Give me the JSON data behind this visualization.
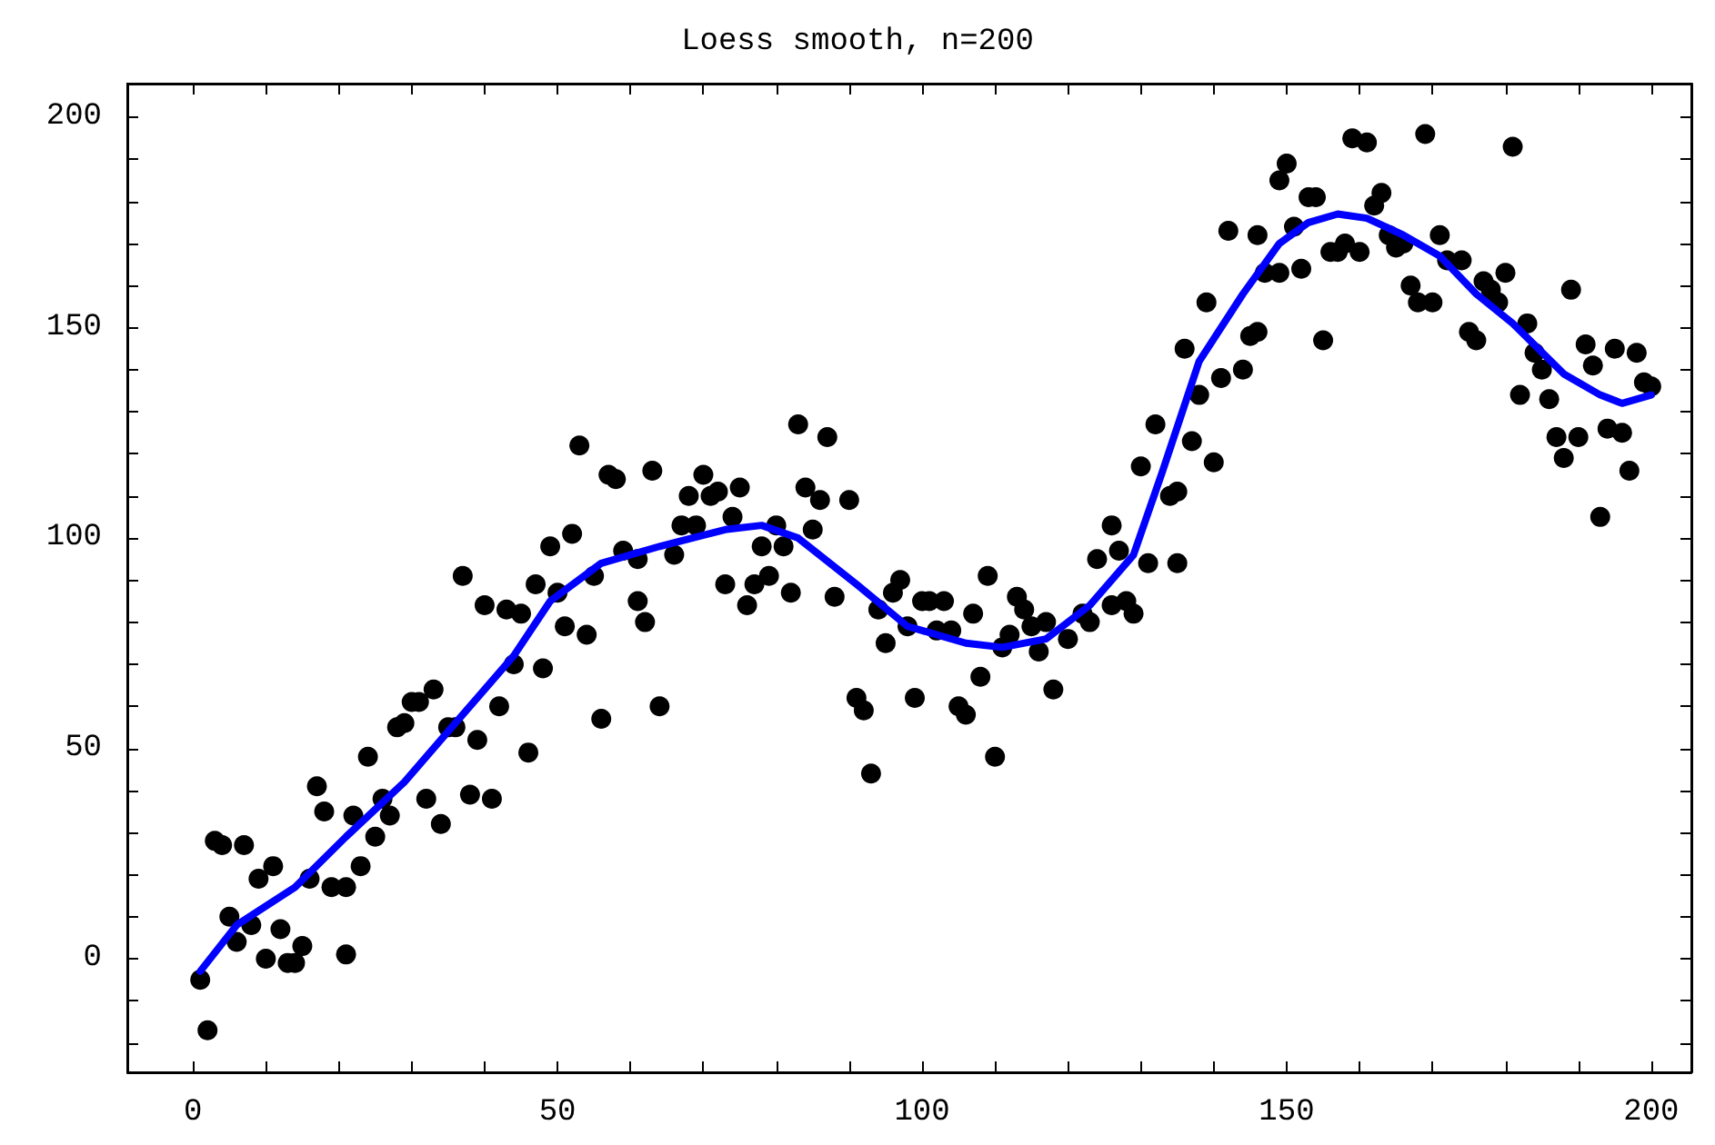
{
  "chart_data": {
    "type": "scatter",
    "title": "Loess smooth, n=200",
    "marker": "circle",
    "xlim": [
      -9,
      205.5
    ],
    "ylim": [
      -27,
      208
    ],
    "xticks": [
      0,
      {
        "value": 10,
        "label": null
      },
      {
        "value": 20,
        "label": null
      },
      {
        "value": 30,
        "label": null
      },
      {
        "value": 40,
        "label": null
      },
      50,
      {
        "value": 60,
        "label": null
      },
      {
        "value": 70,
        "label": null
      },
      {
        "value": 80,
        "label": null
      },
      {
        "value": 90,
        "label": null
      },
      100,
      {
        "value": 110,
        "label": null
      },
      {
        "value": 120,
        "label": null
      },
      {
        "value": 130,
        "label": null
      },
      {
        "value": 140,
        "label": null
      },
      150,
      {
        "value": 160,
        "label": null
      },
      {
        "value": 170,
        "label": null
      },
      {
        "value": 180,
        "label": null
      },
      {
        "value": 190,
        "label": null
      },
      200
    ],
    "yticks": [
      {
        "value": -20,
        "label": null
      },
      {
        "value": -10,
        "label": null
      },
      0,
      {
        "value": 10,
        "label": null
      },
      {
        "value": 20,
        "label": null
      },
      {
        "value": 30,
        "label": null
      },
      {
        "value": 40,
        "label": null
      },
      50,
      {
        "value": 60,
        "label": null
      },
      {
        "value": 70,
        "label": null
      },
      {
        "value": 80,
        "label": null
      },
      {
        "value": 90,
        "label": null
      },
      100,
      {
        "value": 110,
        "label": null
      },
      {
        "value": 120,
        "label": null
      },
      {
        "value": 130,
        "label": null
      },
      {
        "value": 140,
        "label": null
      },
      150,
      {
        "value": 160,
        "label": null
      },
      {
        "value": 170,
        "label": null
      },
      {
        "value": 180,
        "label": null
      },
      {
        "value": 190,
        "label": null
      },
      200
    ],
    "series": [
      {
        "color": "#000000",
        "x": [
          1,
          2,
          3,
          4,
          5,
          6,
          7,
          8,
          9,
          10,
          11,
          12,
          13,
          14,
          15,
          16,
          17,
          18,
          19,
          21,
          21,
          22,
          23,
          24,
          25,
          26,
          27,
          28,
          29,
          30,
          31,
          32,
          33,
          34,
          35,
          36,
          37,
          38,
          39,
          40,
          41,
          42,
          43,
          44,
          45,
          46,
          47,
          48,
          49,
          50,
          51,
          52,
          53,
          54,
          55,
          56,
          57,
          58,
          59,
          61,
          61,
          62,
          63,
          64,
          66,
          67,
          68,
          69,
          70,
          71,
          72,
          73,
          74,
          75,
          76,
          77,
          78,
          79,
          80,
          81,
          82,
          83,
          84,
          85,
          86,
          87,
          88,
          90,
          91,
          92,
          93,
          94,
          95,
          96,
          97,
          98,
          99,
          100,
          101,
          102,
          103,
          104,
          105,
          106,
          107,
          108,
          109,
          110,
          111,
          112,
          113,
          114,
          115,
          116,
          117,
          118,
          120,
          122,
          123,
          124,
          126,
          126,
          127,
          128,
          129,
          130,
          131,
          132,
          134,
          135,
          135,
          136,
          137,
          138,
          139,
          140,
          141,
          142,
          144,
          145,
          146,
          146,
          147,
          149,
          149,
          150,
          151,
          152,
          153,
          154,
          155,
          156,
          157,
          158,
          159,
          160,
          161,
          162,
          163,
          164,
          165,
          166,
          167,
          168,
          169,
          170,
          171,
          172,
          174,
          175,
          176,
          177,
          178,
          179,
          180,
          181,
          182,
          183,
          184,
          185,
          186,
          187,
          188,
          189,
          190,
          191,
          192,
          193,
          194,
          195,
          196,
          197,
          198,
          199,
          200
        ],
        "values": [
          -5,
          -17,
          28,
          27,
          10,
          4,
          27,
          8,
          19,
          0,
          22,
          7,
          -1,
          -1,
          3,
          19,
          41,
          35,
          17,
          17,
          1,
          34,
          22,
          48,
          29,
          38,
          34,
          55,
          56,
          61,
          61,
          38,
          64,
          32,
          55,
          55,
          91,
          39,
          52,
          84,
          38,
          60,
          83,
          70,
          82,
          49,
          89,
          69,
          98,
          87,
          79,
          101,
          122,
          77,
          91,
          57,
          115,
          114,
          97,
          95,
          85,
          80,
          116,
          60,
          96,
          103,
          110,
          103,
          115,
          110,
          111,
          89,
          105,
          112,
          84,
          89,
          98,
          91,
          103,
          98,
          87,
          127,
          112,
          102,
          109,
          124,
          86,
          109,
          62,
          59,
          44,
          83,
          75,
          87,
          90,
          79,
          62,
          85,
          85,
          78,
          85,
          78,
          60,
          58,
          82,
          67,
          91,
          48,
          74,
          77,
          86,
          83,
          79,
          73,
          80,
          64,
          76,
          82,
          80,
          95,
          84,
          103,
          97,
          85,
          82,
          117,
          94,
          127,
          110,
          94,
          111,
          145,
          123,
          134,
          156,
          118,
          138,
          173,
          140,
          148,
          149,
          172,
          163,
          163,
          185,
          189,
          174,
          164,
          181,
          181,
          147,
          168,
          168,
          170,
          195,
          168,
          194,
          179,
          182,
          172,
          169,
          170,
          160,
          156,
          196,
          156,
          172,
          166,
          166,
          149,
          147,
          161,
          159,
          156,
          163,
          193,
          134,
          151,
          144,
          140,
          133,
          124,
          119,
          159,
          124,
          146,
          141,
          105,
          126,
          145,
          125,
          116,
          144,
          137,
          136
        ]
      },
      {
        "type": "line",
        "color": "#0000ff",
        "marker": "none",
        "x": [
          1,
          6,
          14,
          21,
          29,
          36,
          44,
          49,
          56,
          64,
          73,
          78,
          83,
          91,
          98,
          106,
          111,
          117,
          123,
          129,
          133,
          138,
          144,
          149,
          153,
          157,
          161,
          166,
          171,
          176,
          181,
          188,
          193,
          196,
          200
        ],
        "values": [
          -3,
          8,
          17,
          29,
          42,
          56,
          72,
          85,
          94,
          98,
          102,
          103,
          100,
          89,
          79,
          75,
          74,
          76,
          84,
          96,
          116,
          142,
          158,
          170,
          175,
          177,
          176,
          172,
          167,
          158,
          151,
          139,
          134,
          132,
          134
        ]
      }
    ]
  }
}
